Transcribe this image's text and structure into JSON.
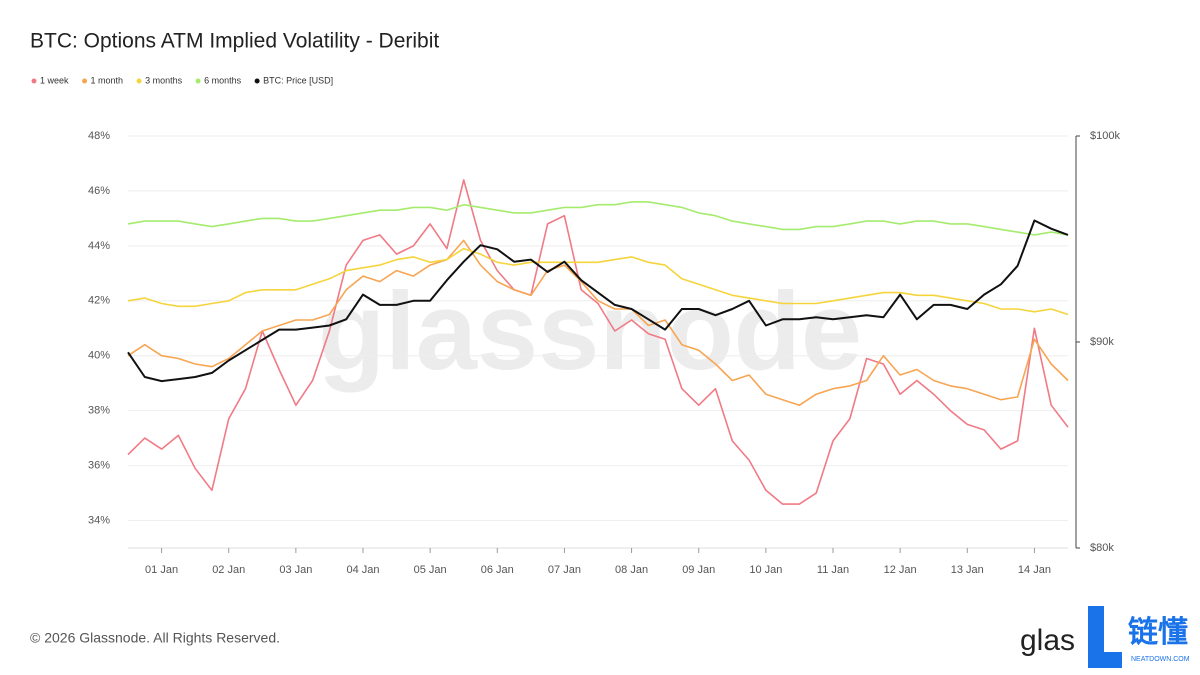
{
  "chart_data": {
    "type": "line",
    "title": "BTC: Options ATM Implied Volatility - Deribit",
    "watermark": "glassnode",
    "footer": "© 2026 Glassnode. All Rights Reserved.",
    "logo": {
      "brand": "glas",
      "cn": "链懂",
      "site": "NEATDOWN.COM"
    },
    "categories": [
      null,
      null,
      "01 Jan",
      null,
      null,
      null,
      "02 Jan",
      null,
      null,
      null,
      "03 Jan",
      null,
      null,
      null,
      "04 Jan",
      null,
      null,
      null,
      "05 Jan",
      null,
      null,
      null,
      "06 Jan",
      null,
      null,
      null,
      "07 Jan",
      null,
      null,
      null,
      "08 Jan",
      null,
      null,
      null,
      "09 Jan",
      null,
      null,
      null,
      "10 Jan",
      null,
      null,
      null,
      "11 Jan",
      null,
      null,
      null,
      "12 Jan",
      null,
      null,
      null,
      "13 Jan",
      null,
      null,
      null,
      "14 Jan",
      null,
      null
    ],
    "series": [
      {
        "name": "1 week",
        "color": "#f07a85",
        "values": [
          36.4,
          37.0,
          36.6,
          37.1,
          35.9,
          35.1,
          37.7,
          38.8,
          40.9,
          39.5,
          38.2,
          39.1,
          40.9,
          43.3,
          44.2,
          44.4,
          43.7,
          44.0,
          44.8,
          43.9,
          46.4,
          44.2,
          43.1,
          42.4,
          42.2,
          44.8,
          45.1,
          42.4,
          41.9,
          40.9,
          41.3,
          40.8,
          40.6,
          38.8,
          38.2,
          38.8,
          36.9,
          36.2,
          35.1,
          34.6,
          34.6,
          35.0,
          36.9,
          37.7,
          39.9,
          39.7,
          38.6,
          39.1,
          38.6,
          38.0,
          37.5,
          37.3,
          36.6,
          36.9,
          41.0,
          38.2,
          37.4
        ]
      },
      {
        "name": "1 month",
        "color": "#f7a553",
        "values": [
          40.0,
          40.4,
          40.0,
          39.9,
          39.7,
          39.6,
          39.9,
          40.4,
          40.9,
          41.1,
          41.3,
          41.3,
          41.5,
          42.4,
          42.9,
          42.7,
          43.1,
          42.9,
          43.3,
          43.5,
          44.2,
          43.3,
          42.7,
          42.4,
          42.2,
          43.1,
          43.3,
          42.7,
          42.0,
          41.7,
          41.7,
          41.1,
          41.3,
          40.4,
          40.2,
          39.7,
          39.1,
          39.3,
          38.6,
          38.4,
          38.2,
          38.6,
          38.8,
          38.9,
          39.1,
          40.0,
          39.3,
          39.5,
          39.1,
          38.9,
          38.8,
          38.6,
          38.4,
          38.5,
          40.6,
          39.7,
          39.1
        ]
      },
      {
        "name": "3 months",
        "color": "#f5d43c",
        "values": [
          42.0,
          42.1,
          41.9,
          41.8,
          41.8,
          41.9,
          42.0,
          42.3,
          42.4,
          42.4,
          42.4,
          42.6,
          42.8,
          43.1,
          43.2,
          43.3,
          43.5,
          43.6,
          43.4,
          43.5,
          43.9,
          43.7,
          43.4,
          43.3,
          43.4,
          43.4,
          43.4,
          43.4,
          43.4,
          43.5,
          43.6,
          43.4,
          43.3,
          42.8,
          42.6,
          42.4,
          42.2,
          42.1,
          42.0,
          41.9,
          41.9,
          41.9,
          42.0,
          42.1,
          42.2,
          42.3,
          42.3,
          42.2,
          42.2,
          42.1,
          42.0,
          41.9,
          41.7,
          41.7,
          41.6,
          41.7,
          41.5
        ]
      },
      {
        "name": "6 months",
        "color": "#a5ec6e",
        "values": [
          44.8,
          44.9,
          44.9,
          44.9,
          44.8,
          44.7,
          44.8,
          44.9,
          45.0,
          45.0,
          44.9,
          44.9,
          45.0,
          45.1,
          45.2,
          45.3,
          45.3,
          45.4,
          45.4,
          45.3,
          45.5,
          45.4,
          45.3,
          45.2,
          45.2,
          45.3,
          45.4,
          45.4,
          45.5,
          45.5,
          45.6,
          45.6,
          45.5,
          45.4,
          45.2,
          45.1,
          44.9,
          44.8,
          44.7,
          44.6,
          44.6,
          44.7,
          44.7,
          44.8,
          44.9,
          44.9,
          44.8,
          44.9,
          44.9,
          44.8,
          44.8,
          44.7,
          44.6,
          44.5,
          44.4,
          44.5,
          44.4
        ]
      },
      {
        "name": "BTC: Price [USD]",
        "color": "#111111",
        "axis": "y2",
        "values": [
          89500,
          88300,
          88100,
          88200,
          88300,
          88500,
          89100,
          89600,
          90100,
          90600,
          90600,
          90700,
          90800,
          91100,
          92300,
          91800,
          91800,
          92000,
          92000,
          93000,
          93900,
          94700,
          94500,
          93900,
          94000,
          93400,
          93900,
          93000,
          92400,
          91800,
          91600,
          91100,
          90600,
          91600,
          91600,
          91300,
          91600,
          92000,
          90800,
          91100,
          91100,
          91200,
          91100,
          91200,
          91300,
          91200,
          92300,
          91100,
          91800,
          91800,
          91600,
          92300,
          92800,
          93700,
          95900,
          95500,
          95200
        ]
      }
    ],
    "ylim": [
      33,
      48
    ],
    "yticks": [
      {
        "value": 34,
        "label": "34%"
      },
      {
        "value": 36,
        "label": "36%"
      },
      {
        "value": 38,
        "label": "38%"
      },
      {
        "value": 40,
        "label": "40%"
      },
      {
        "value": 42,
        "label": "42%"
      },
      {
        "value": 44,
        "label": "44%"
      },
      {
        "value": 46,
        "label": "46%"
      },
      {
        "value": 48,
        "label": "48%"
      }
    ],
    "y2lim": [
      80000,
      100000
    ],
    "y2ticks": [
      {
        "value": 80000,
        "label": "$80k"
      },
      {
        "value": 90000,
        "label": "$90k"
      },
      {
        "value": 100000,
        "label": "$100k"
      }
    ],
    "grid": true,
    "legend": "top-left"
  }
}
